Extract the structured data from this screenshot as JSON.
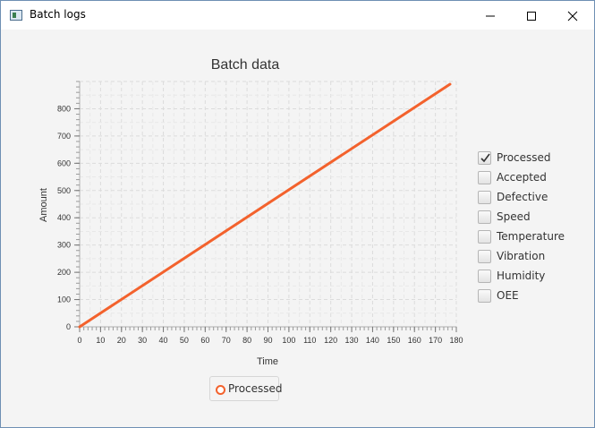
{
  "window": {
    "title": "Batch logs",
    "controls": [
      "minimize",
      "maximize",
      "close"
    ]
  },
  "chart_data": {
    "type": "line",
    "title": "Batch data",
    "xlabel": "Time",
    "ylabel": "Amount",
    "xlim": [
      0,
      180
    ],
    "ylim": [
      0,
      900
    ],
    "xticks": [
      0,
      10,
      20,
      30,
      40,
      50,
      60,
      70,
      80,
      90,
      100,
      110,
      120,
      130,
      140,
      150,
      160,
      170,
      180
    ],
    "yticks": [
      0,
      100,
      200,
      300,
      400,
      500,
      600,
      700,
      800
    ],
    "grid": true,
    "legend_position": "bottom",
    "series": [
      {
        "name": "Processed",
        "color": "#f3622d",
        "x": [
          0,
          177
        ],
        "y": [
          0,
          890
        ]
      }
    ]
  },
  "legend": {
    "items": [
      {
        "label": "Processed",
        "color": "#f3622d"
      }
    ]
  },
  "series_toggles": [
    {
      "label": "Processed",
      "checked": true
    },
    {
      "label": "Accepted",
      "checked": false
    },
    {
      "label": "Defective",
      "checked": false
    },
    {
      "label": "Speed",
      "checked": false
    },
    {
      "label": "Temperature",
      "checked": false
    },
    {
      "label": "Vibration",
      "checked": false
    },
    {
      "label": "Humidity",
      "checked": false
    },
    {
      "label": "OEE",
      "checked": false
    }
  ]
}
